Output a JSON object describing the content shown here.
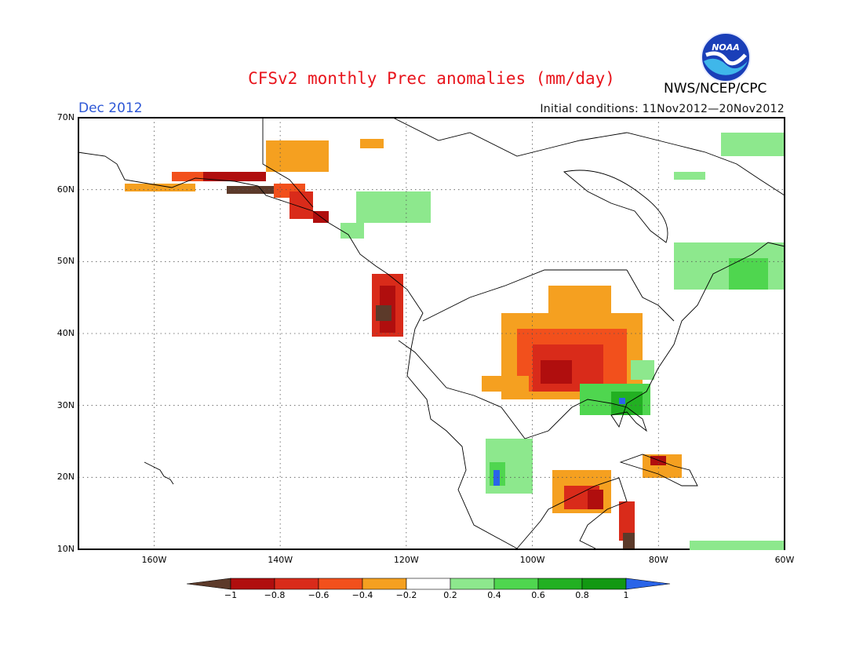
{
  "header": {
    "title": "CFSv2 monthly Prec anomalies (mm/day)",
    "month": "Dec 2012",
    "initial_conditions": "Initial conditions: 11Nov2012—20Nov2012",
    "agency": "NWS/NCEP/CPC",
    "logo_text": "NOAA"
  },
  "map": {
    "lat_labels": [
      "70N",
      "60N",
      "50N",
      "40N",
      "30N",
      "20N",
      "10N"
    ],
    "lon_labels": [
      "160W",
      "140W",
      "120W",
      "100W",
      "80W",
      "60W"
    ],
    "lat_range": [
      10,
      70
    ],
    "lon_range": [
      -172,
      -60
    ],
    "grid_lats": [
      20,
      30,
      40,
      50,
      60
    ],
    "grid_lons": [
      -160,
      -140,
      -120,
      -100,
      -80
    ]
  },
  "colorbar": {
    "labels": [
      "−1",
      "−0.8",
      "−0.6",
      "−0.4",
      "−0.2",
      "0.2",
      "0.4",
      "0.6",
      "0.8",
      "1"
    ],
    "colors": [
      "#5c3a2a",
      "#b00e0e",
      "#d92b1a",
      "#f2501c",
      "#f5a020",
      "#ffffff",
      "#8de88d",
      "#4fd64f",
      "#22b022",
      "#129812",
      "#2a64e8"
    ]
  }
}
